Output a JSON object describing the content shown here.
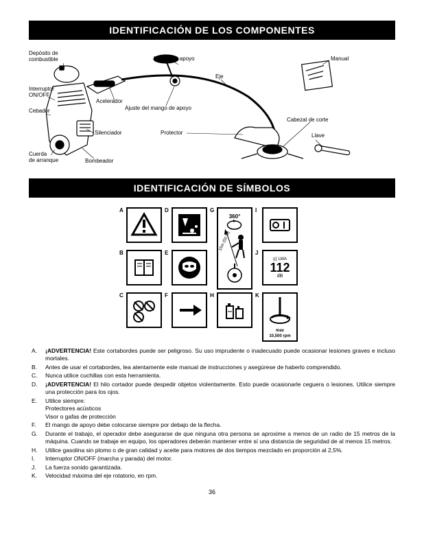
{
  "headers": {
    "components": "IDENTIFICACIÓN DE LOS COMPONENTES",
    "symbols": "IDENTIFICACIÓN DE SÍMBOLOS"
  },
  "component_labels": {
    "fuel_tank": "Depósito de\ncombustible",
    "on_off": "Interruptor\nON/OFF",
    "primer": "Cebador",
    "muffler": "Silenciador",
    "starter": "Cuerda\nde arranque",
    "pump": "Bombeador",
    "throttle": "Acelerador",
    "handle_adjust": "Ajuste del mango de apoyo",
    "protector": "Protector",
    "handle": "Mango de apoyo",
    "shaft": "Eje",
    "manual": "Manual",
    "cutting_head": "Cabezal de corte",
    "wrench": "Llave"
  },
  "symbol_letters": {
    "a": "A",
    "b": "B",
    "c": "C",
    "d": "D",
    "e": "E",
    "f": "F",
    "g": "G",
    "h": "H",
    "i": "I",
    "j": "J",
    "k": "K"
  },
  "symbol_text": {
    "g_360": "360°",
    "g_15m": "15m (50 ft.)",
    "j_112": "112",
    "j_db": "dB",
    "j_lwa": "LWA",
    "k_max": "max\n10,500 rpm"
  },
  "warnings": [
    {
      "l": "A.",
      "bold": "¡ADVERTENCIA!",
      "t": "Este cortabordes puede ser peligroso. Su uso imprudente o inadecuado puede ocasionar lesiones graves e incluso mortales."
    },
    {
      "l": "B.",
      "t": "Antes de usar el cortabordes, lea atentamente este manual de instrucciones y asegúrese de haberlo comprendido."
    },
    {
      "l": "C.",
      "t": "Nunca utilice cuchillas con esta herramienta."
    },
    {
      "l": "D.",
      "bold": "¡ADVERTENCIA!",
      "t": "El hilo cortador puede despedir objetos violentamente. Esto puede ocasionarle ceguera o lesiones. Utilice siempre una protección para los ojos."
    },
    {
      "l": "E.",
      "t": "Utilice siempre:\nProtectores acústicos\nVisor o gafas de protección"
    },
    {
      "l": "F.",
      "t": "El mango de apoyo debe colocarse siempre por debajo de la flecha."
    },
    {
      "l": "G.",
      "t": "Durante el trabajo, el operador debe asegurarse de que ninguna otra persona se aproxime a menos de un radio de 15 metros de la máquina. Cuando se trabaje en equipo, los operadores deberán mantener entre sí una distancia de seguridad de al menos 15 metros."
    },
    {
      "l": "H.",
      "t": "Utilice gasolina sin plomo o de gran calidad y aceite para motores de dos tiempos mezclado en proporción al 2,5%."
    },
    {
      "l": "I.",
      "t": "Interruptor ON/OFF (marcha y parada) del motor."
    },
    {
      "l": "J.",
      "t": "La fuerza sonido garantizada."
    },
    {
      "l": "K.",
      "t": "Velocidad máxima del eje rotatorio, en rpm."
    }
  ],
  "page_number": "36",
  "colors": {
    "black": "#000000",
    "white": "#ffffff"
  }
}
